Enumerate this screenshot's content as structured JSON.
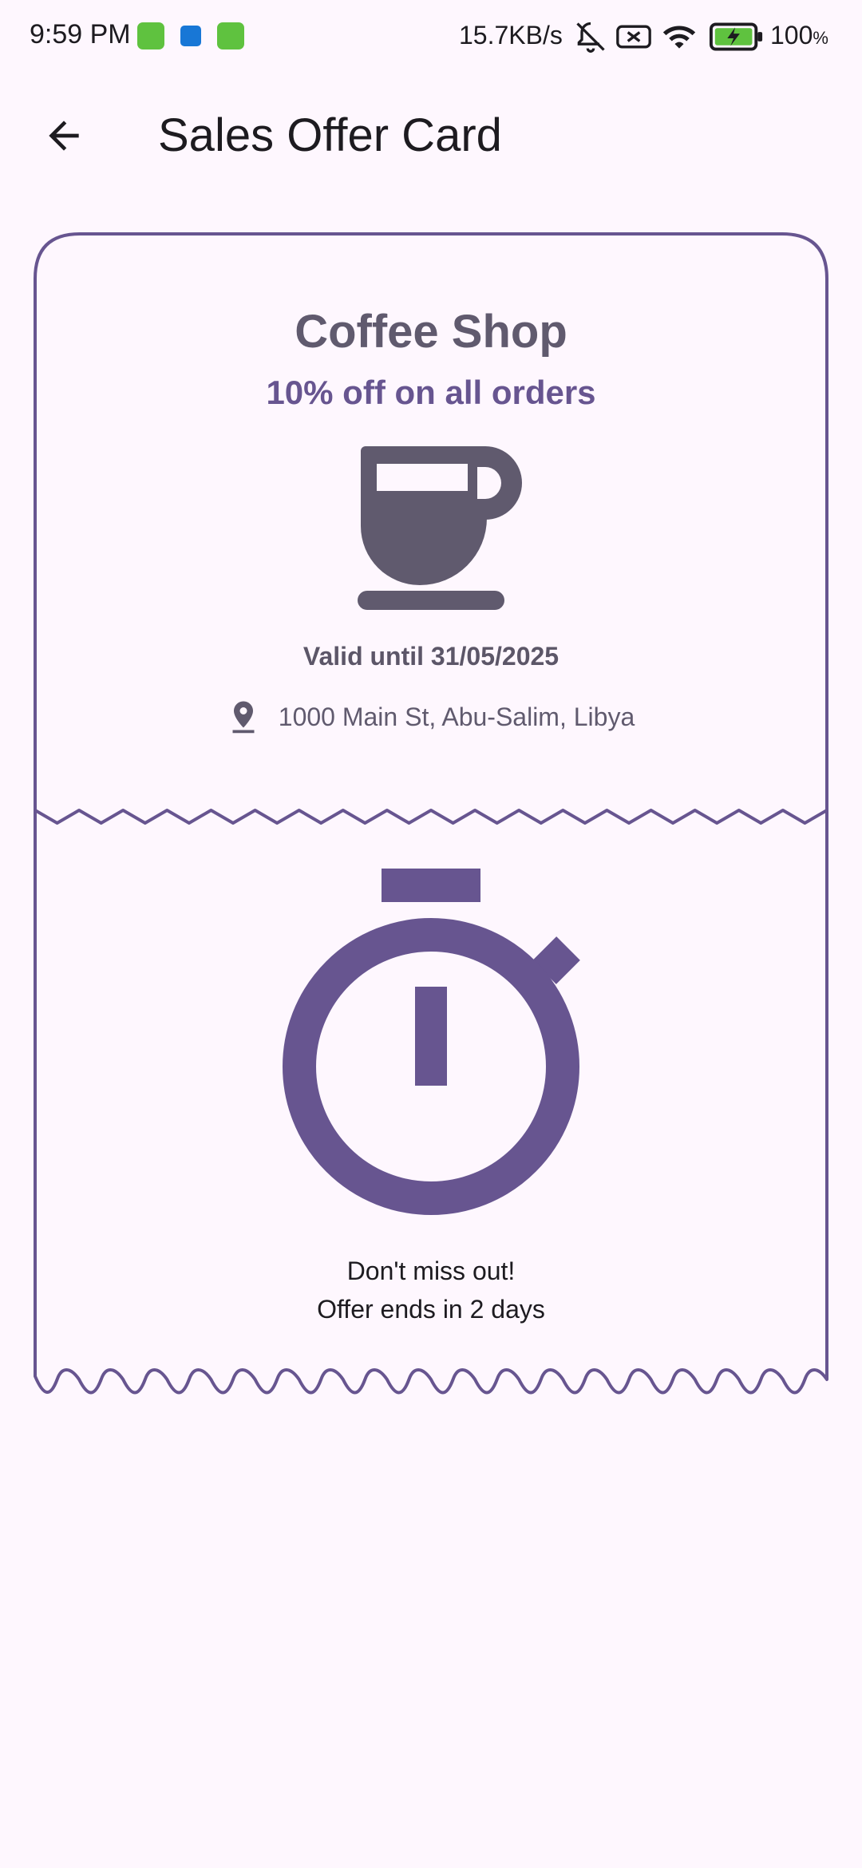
{
  "status_bar": {
    "time": "9:59 PM",
    "network_speed": "15.7KB/s",
    "battery": "100",
    "battery_unit": "%",
    "icons": [
      "cat-app-icon",
      "outlook-icon",
      "cat-app-icon",
      "bell-off-icon",
      "sim-x-icon",
      "wifi-icon",
      "battery-charging-icon"
    ]
  },
  "app_bar": {
    "title": "Sales Offer Card",
    "back_icon": "arrow-back-icon"
  },
  "card": {
    "shop_name": "Coffee Shop",
    "offer": "10% off on all orders",
    "shop_icon": "coffee-cup-icon",
    "valid_until": "Valid until 31/05/2025",
    "location_icon": "location-pin-icon",
    "address": "1000 Main St, Abu-Salim, Libya",
    "timer_icon": "stopwatch-icon",
    "urgency_line1": "Don't miss out!",
    "urgency_line2": "Offer ends in 2 days"
  },
  "colors": {
    "background": "#fef7fe",
    "outline": "#675590",
    "primary": "#675590",
    "icon_gray": "#605a6e",
    "text_dark": "#1d1b20"
  }
}
